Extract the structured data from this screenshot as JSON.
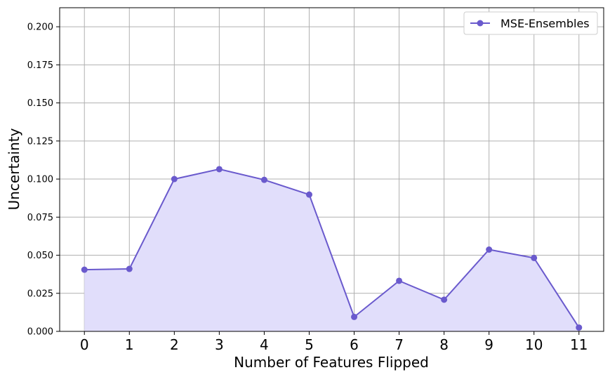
{
  "chart_data": {
    "type": "area",
    "x": [
      0,
      1,
      2,
      3,
      4,
      5,
      6,
      7,
      8,
      9,
      10,
      11
    ],
    "series": [
      {
        "name": "MSE-Ensembles",
        "values": [
          0.0405,
          0.041,
          0.1,
          0.1065,
          0.0995,
          0.0898,
          0.0095,
          0.0332,
          0.0208,
          0.0537,
          0.0482,
          0.0025
        ],
        "color": "#6a5acd",
        "fill": "#e1defb"
      }
    ],
    "xlabel": "Number of Features Flipped",
    "ylabel": "Uncertainty",
    "xticks": [
      "0",
      "1",
      "2",
      "3",
      "4",
      "5",
      "6",
      "7",
      "8",
      "9",
      "10",
      "11"
    ],
    "yticks": [
      "0.000",
      "0.025",
      "0.050",
      "0.075",
      "0.100",
      "0.125",
      "0.150",
      "0.175",
      "0.200"
    ],
    "xlim": [
      -0.55,
      11.55
    ],
    "ylim": [
      0,
      0.2125
    ],
    "grid": true,
    "legend": "top-right"
  }
}
